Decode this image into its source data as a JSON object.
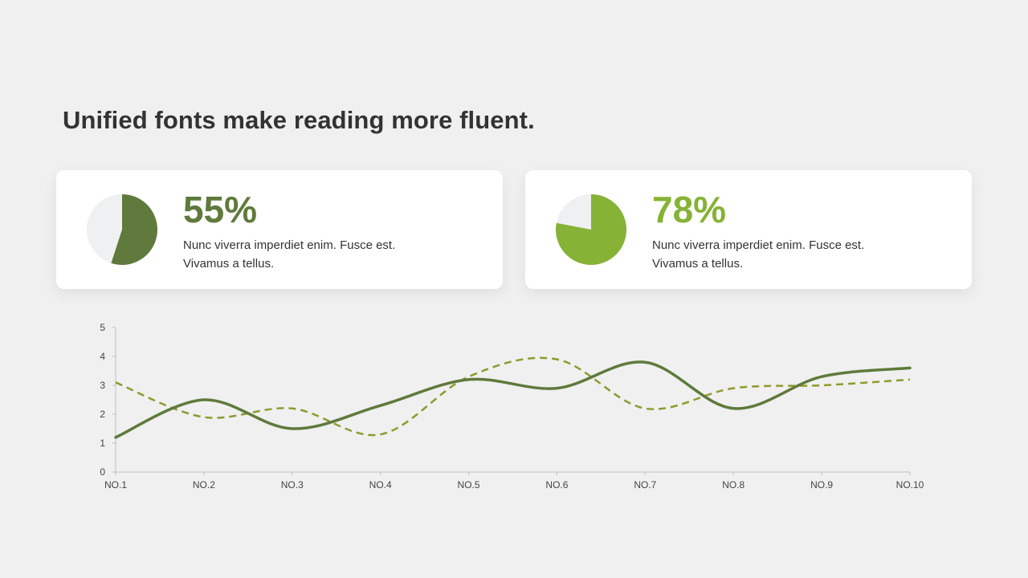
{
  "title": "Unified fonts make reading more fluent.",
  "cards": [
    {
      "percent_label": "55%",
      "value": 55,
      "description_lines": [
        "Nunc viverra imperdiet enim. Fusce est.",
        "Vivamus a tellus."
      ],
      "color": "#5f7a3c",
      "remainder_color": "#eef0f2"
    },
    {
      "percent_label": "78%",
      "value": 78,
      "description_lines": [
        "Nunc viverra imperdiet enim. Fusce est.",
        "Vivamus a tellus."
      ],
      "color": "#86b236",
      "remainder_color": "#eef0f2"
    }
  ],
  "chart_data": {
    "type": "line",
    "categories": [
      "NO.1",
      "NO.2",
      "NO.3",
      "NO.4",
      "NO.5",
      "NO.6",
      "NO.7",
      "NO.8",
      "NO.9",
      "NO.10"
    ],
    "ylim": [
      0,
      5
    ],
    "yticks": [
      0,
      1,
      2,
      3,
      4,
      5
    ],
    "grid": false,
    "legend": "none",
    "series": [
      {
        "values": [
          1.2,
          2.5,
          1.5,
          2.3,
          3.2,
          2.9,
          3.8,
          2.2,
          3.3,
          3.6
        ],
        "color": "#5f7a3c",
        "style": "solid"
      },
      {
        "values": [
          3.1,
          1.9,
          2.2,
          1.3,
          3.3,
          3.9,
          2.2,
          2.9,
          3.0,
          3.2
        ],
        "color": "#8f9a2e",
        "style": "dashed"
      }
    ]
  }
}
